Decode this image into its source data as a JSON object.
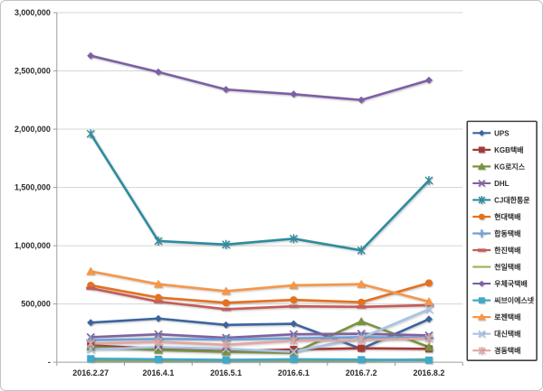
{
  "chart_data": {
    "type": "line",
    "title": "",
    "xlabel": "",
    "ylabel": "",
    "grid": true,
    "legend_position": "right",
    "categories": [
      "2016.2.27",
      "2016.4.1",
      "2016.5.1",
      "2016.6.1",
      "2016.7.2",
      "2016.8.2"
    ],
    "y_axis": {
      "min": 0,
      "max": 3000000,
      "tick_interval": 500000,
      "tick_labels": [
        "-",
        "500,000",
        "1,000,000",
        "1,500,000",
        "2,000,000",
        "2,500,000",
        "3,000,000"
      ]
    },
    "series": [
      {
        "name": "UPS",
        "color": "#3c649e",
        "marker": "diamond",
        "values": [
          340000,
          375000,
          320000,
          330000,
          115000,
          370000
        ]
      },
      {
        "name": "KGB택배",
        "color": "#a63836",
        "marker": "square",
        "values": [
          145000,
          115000,
          95000,
          110000,
          120000,
          115000
        ]
      },
      {
        "name": "KG로지스",
        "color": "#77933c",
        "marker": "triangle",
        "values": [
          130000,
          105000,
          90000,
          80000,
          350000,
          130000
        ]
      },
      {
        "name": "DHL",
        "color": "#7f63a1",
        "marker": "x",
        "values": [
          215000,
          240000,
          210000,
          240000,
          245000,
          230000
        ]
      },
      {
        "name": "CJ대한통운",
        "color": "#2c8c9f",
        "marker": "asterisk",
        "values": [
          1960000,
          1040000,
          1010000,
          1060000,
          960000,
          1560000
        ]
      },
      {
        "name": "현대택배",
        "color": "#e5711d",
        "marker": "circle",
        "values": [
          660000,
          555000,
          510000,
          535000,
          515000,
          680000
        ]
      },
      {
        "name": "합동택배",
        "color": "#6fa0d8",
        "marker": "plus",
        "values": [
          190000,
          200000,
          195000,
          205000,
          215000,
          210000
        ]
      },
      {
        "name": "한진택배",
        "color": "#c75b56",
        "marker": "dash",
        "values": [
          635000,
          520000,
          455000,
          480000,
          475000,
          490000
        ]
      },
      {
        "name": "천일택배",
        "color": "#94b64e",
        "marker": "none",
        "values": [
          15000,
          15000,
          15000,
          15000,
          15000,
          25000
        ]
      },
      {
        "name": "우체국택배",
        "color": "#7d5fa5",
        "marker": "diamond",
        "values": [
          2630000,
          2490000,
          2340000,
          2300000,
          2250000,
          2420000
        ]
      },
      {
        "name": "씨브이에스넷",
        "color": "#3fa9c9",
        "marker": "square",
        "values": [
          30000,
          25000,
          20000,
          25000,
          22000,
          18000
        ]
      },
      {
        "name": "로젠택배",
        "color": "#f79646",
        "marker": "triangle",
        "values": [
          780000,
          670000,
          610000,
          660000,
          670000,
          520000
        ]
      },
      {
        "name": "대신택배",
        "color": "#a8c4e5",
        "marker": "x",
        "values": [
          110000,
          130000,
          115000,
          90000,
          210000,
          455000
        ]
      },
      {
        "name": "경동택배",
        "color": "#e2a6a1",
        "marker": "asterisk",
        "values": [
          160000,
          175000,
          150000,
          185000,
          190000,
          205000
        ]
      }
    ],
    "colors": {
      "gridline": "#d6d6d6",
      "axis": "#9e9e9e",
      "text": "#2b2b2b",
      "background": "#ffffff"
    }
  }
}
